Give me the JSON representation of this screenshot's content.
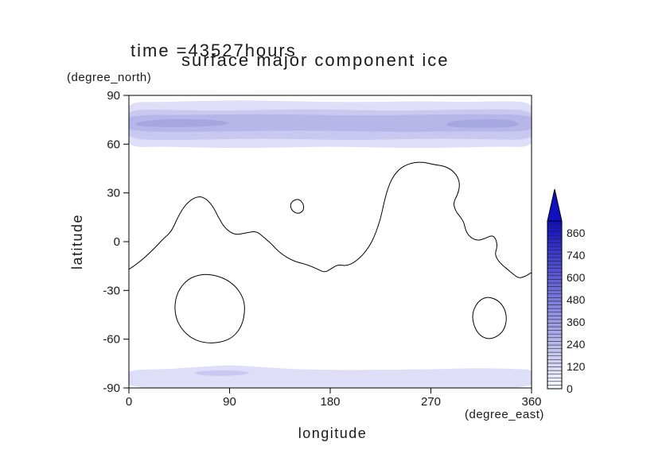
{
  "chart": {
    "title_line1": "time =43527hours",
    "title_line2": "surface major component ice",
    "left_axis_unit": "(degree_north)",
    "bottom_axis_unit": "(degree_east)",
    "x_axis_label": "longitude",
    "y_axis_label": "latitude"
  },
  "chart_data": {
    "type": "filled-contour-map",
    "title": "surface major component ice",
    "subtitle": "time =43527hours",
    "xlabel": "longitude (degree_east)",
    "ylabel": "latitude (degree_north)",
    "xlim": [
      0,
      360
    ],
    "ylim": [
      -90,
      90
    ],
    "x_ticks": [
      0,
      90,
      180,
      270,
      360
    ],
    "y_ticks": [
      90,
      60,
      30,
      0,
      -30,
      -60,
      -90
    ],
    "grid": false,
    "legend_position": "right-colorbar",
    "colorbar": {
      "labels": [
        "0",
        "120",
        "240",
        "360",
        "480",
        "600",
        "740",
        "860"
      ],
      "min": 0,
      "max": 920,
      "segments": 46,
      "bottom_color": "#f6f6fe",
      "top_color": "#1010c0"
    },
    "filled_regions": [
      {
        "name": "north-polar-ice-level1",
        "color": "#dedef8",
        "points": [
          [
            -6,
            58
          ],
          [
            30,
            58.5
          ],
          [
            60,
            58
          ],
          [
            100,
            57.5
          ],
          [
            140,
            58
          ],
          [
            180,
            58.5
          ],
          [
            220,
            58
          ],
          [
            260,
            57.5
          ],
          [
            300,
            58
          ],
          [
            330,
            58.5
          ],
          [
            366,
            58
          ],
          [
            366,
            86
          ],
          [
            330,
            86.5
          ],
          [
            300,
            86
          ],
          [
            260,
            86.5
          ],
          [
            220,
            86
          ],
          [
            180,
            86
          ],
          [
            140,
            86.5
          ],
          [
            100,
            87
          ],
          [
            60,
            86.5
          ],
          [
            30,
            86
          ],
          [
            -6,
            86
          ]
        ]
      },
      {
        "name": "north-polar-ice-level2",
        "color": "#c8c8f0",
        "points": [
          [
            -6,
            63
          ],
          [
            40,
            62.5
          ],
          [
            80,
            63
          ],
          [
            120,
            63.5
          ],
          [
            160,
            63
          ],
          [
            200,
            62.5
          ],
          [
            240,
            63
          ],
          [
            280,
            63.5
          ],
          [
            320,
            63
          ],
          [
            366,
            62.5
          ],
          [
            366,
            81
          ],
          [
            320,
            81.5
          ],
          [
            280,
            81
          ],
          [
            240,
            80.5
          ],
          [
            200,
            81
          ],
          [
            160,
            81.5
          ],
          [
            120,
            81
          ],
          [
            80,
            80.5
          ],
          [
            40,
            81
          ],
          [
            -6,
            81.5
          ]
        ]
      },
      {
        "name": "north-polar-ice-level3",
        "color": "#b6b6e8",
        "points": [
          [
            -6,
            68
          ],
          [
            50,
            67.5
          ],
          [
            100,
            68
          ],
          [
            150,
            68.5
          ],
          [
            200,
            68
          ],
          [
            250,
            67.5
          ],
          [
            300,
            68
          ],
          [
            366,
            67.5
          ],
          [
            366,
            78
          ],
          [
            310,
            78.5
          ],
          [
            260,
            78
          ],
          [
            210,
            77.5
          ],
          [
            160,
            78
          ],
          [
            110,
            78.5
          ],
          [
            60,
            78
          ],
          [
            -6,
            78
          ]
        ]
      },
      {
        "name": "north-polar-ice-level4-west",
        "color": "#a6a6e0",
        "points": [
          [
            5,
            71
          ],
          [
            40,
            70.5
          ],
          [
            80,
            71
          ],
          [
            92,
            73
          ],
          [
            76,
            75.2
          ],
          [
            35,
            75.5
          ],
          [
            8,
            74
          ]
        ]
      },
      {
        "name": "north-polar-ice-level4-east",
        "color": "#a6a6e0",
        "points": [
          [
            283,
            70.5
          ],
          [
            318,
            70
          ],
          [
            345,
            70.5
          ],
          [
            350,
            73
          ],
          [
            338,
            75.5
          ],
          [
            300,
            75
          ],
          [
            285,
            73.5
          ]
        ]
      },
      {
        "name": "south-polar-ice-level1",
        "color": "#dedef8",
        "points": [
          [
            -6,
            -79
          ],
          [
            30,
            -78.5
          ],
          [
            55,
            -77.5
          ],
          [
            75,
            -76.5
          ],
          [
            90,
            -76
          ],
          [
            105,
            -76.5
          ],
          [
            125,
            -77.5
          ],
          [
            150,
            -78.5
          ],
          [
            190,
            -79
          ],
          [
            230,
            -78.8
          ],
          [
            270,
            -78.5
          ],
          [
            300,
            -78
          ],
          [
            320,
            -77.8
          ],
          [
            340,
            -78.2
          ],
          [
            366,
            -78.8
          ],
          [
            366,
            -93
          ],
          [
            -6,
            -93
          ]
        ]
      },
      {
        "name": "south-polar-ice-level2",
        "color": "#c8c8f0",
        "points": [
          [
            58,
            -80
          ],
          [
            82,
            -79
          ],
          [
            102,
            -79.5
          ],
          [
            110,
            -81
          ],
          [
            95,
            -82.5
          ],
          [
            70,
            -82.5
          ],
          [
            60,
            -81.5
          ]
        ]
      }
    ],
    "contour_lines": [
      {
        "name": "zero-contour-main",
        "closed": false,
        "points": [
          [
            0,
            -17
          ],
          [
            9,
            -13
          ],
          [
            23,
            -4
          ],
          [
            31,
            2
          ],
          [
            38,
            6
          ],
          [
            45,
            17
          ],
          [
            52,
            24
          ],
          [
            61,
            28
          ],
          [
            68,
            27
          ],
          [
            75,
            22
          ],
          [
            80,
            15
          ],
          [
            86,
            8
          ],
          [
            95,
            4
          ],
          [
            105,
            5.5
          ],
          [
            114,
            6.5
          ],
          [
            120,
            3
          ],
          [
            127,
            -1
          ],
          [
            135,
            -7
          ],
          [
            147,
            -12
          ],
          [
            159,
            -14
          ],
          [
            169,
            -17
          ],
          [
            175,
            -19
          ],
          [
            180,
            -17
          ],
          [
            187,
            -14
          ],
          [
            194,
            -15
          ],
          [
            201,
            -13
          ],
          [
            208,
            -9
          ],
          [
            215,
            -3
          ],
          [
            220,
            4
          ],
          [
            225,
            14
          ],
          [
            228,
            24
          ],
          [
            232,
            34
          ],
          [
            237,
            41
          ],
          [
            244,
            46
          ],
          [
            253,
            48.5
          ],
          [
            263,
            49
          ],
          [
            272,
            47.5
          ],
          [
            282,
            46.5
          ],
          [
            289,
            44
          ],
          [
            294,
            40
          ],
          [
            296,
            35
          ],
          [
            294,
            29
          ],
          [
            290,
            24
          ],
          [
            292,
            19
          ],
          [
            296,
            15.5
          ],
          [
            299.5,
            12
          ],
          [
            301,
            7
          ],
          [
            304.5,
            3
          ],
          [
            311.5,
            0.5
          ],
          [
            318.5,
            2
          ],
          [
            324.5,
            4
          ],
          [
            328,
            2
          ],
          [
            329.5,
            -3
          ],
          [
            327,
            -8
          ],
          [
            331.5,
            -13
          ],
          [
            338.5,
            -17
          ],
          [
            343.5,
            -20
          ],
          [
            348.5,
            -22.5
          ],
          [
            354,
            -21.5
          ],
          [
            360,
            -19
          ]
        ]
      },
      {
        "name": "zero-contour-small-closed",
        "closed": true,
        "points": [
          [
            146,
            25
          ],
          [
            151.5,
            26.5
          ],
          [
            156,
            23.5
          ],
          [
            156.5,
            19.5
          ],
          [
            152,
            17
          ],
          [
            146.5,
            18.5
          ],
          [
            144,
            22
          ]
        ]
      },
      {
        "name": "zero-contour-basin-west",
        "closed": true,
        "points": [
          [
            71,
            -20
          ],
          [
            84,
            -22
          ],
          [
            95,
            -27
          ],
          [
            102,
            -34
          ],
          [
            104,
            -42
          ],
          [
            101,
            -52
          ],
          [
            93,
            -59
          ],
          [
            82,
            -62
          ],
          [
            69,
            -62.5
          ],
          [
            57,
            -60
          ],
          [
            47,
            -54
          ],
          [
            41.5,
            -46
          ],
          [
            41,
            -37
          ],
          [
            45,
            -29
          ],
          [
            53,
            -23
          ],
          [
            62,
            -20.5
          ]
        ]
      },
      {
        "name": "zero-contour-basin-east",
        "closed": true,
        "points": [
          [
            322,
            -34
          ],
          [
            330,
            -36
          ],
          [
            336,
            -41
          ],
          [
            338,
            -48
          ],
          [
            335,
            -55
          ],
          [
            328,
            -59
          ],
          [
            320,
            -60
          ],
          [
            312.5,
            -57
          ],
          [
            308,
            -51
          ],
          [
            307,
            -44
          ],
          [
            311,
            -38
          ],
          [
            316,
            -35
          ]
        ]
      }
    ]
  }
}
